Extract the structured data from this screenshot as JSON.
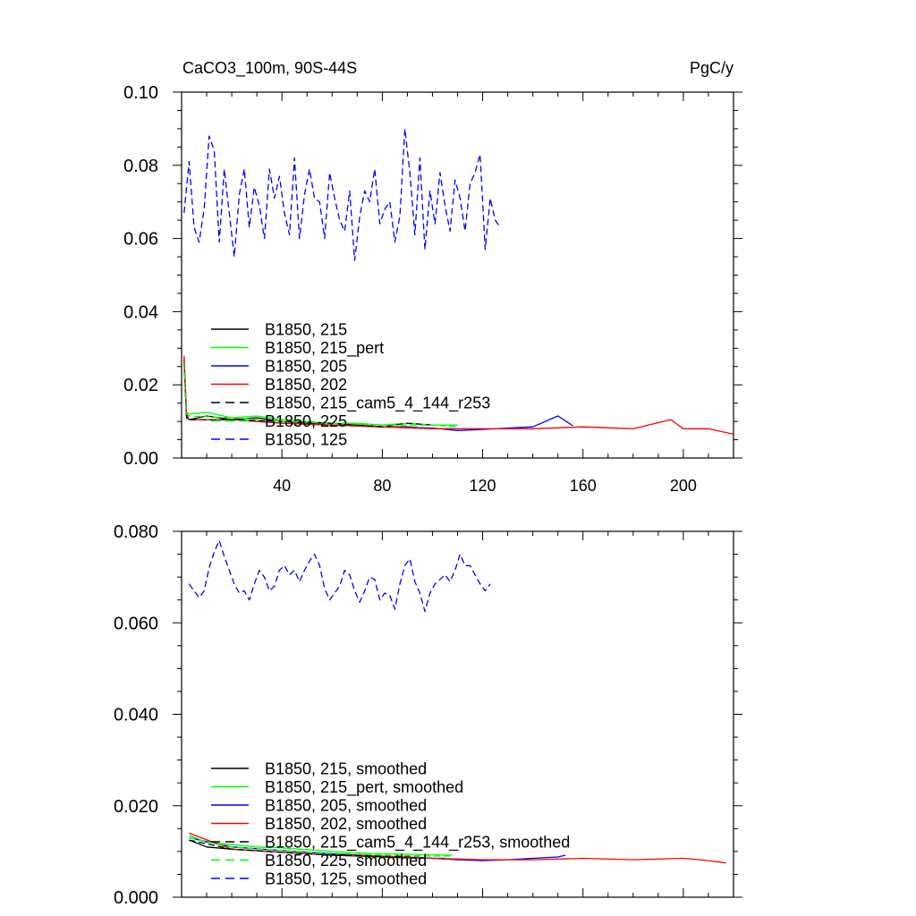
{
  "chart_data": [
    {
      "type": "line",
      "title": "CaCO3_100m, 90S-44S",
      "units": "PgC/y",
      "xlim": [
        0,
        220
      ],
      "ylim": [
        0,
        0.1
      ],
      "xticks": [
        40,
        80,
        120,
        160,
        200
      ],
      "yticks": [
        0,
        0.02,
        0.04,
        0.06,
        0.08,
        0.1
      ],
      "ytick_labels": [
        "0.00",
        "0.02",
        "0.04",
        "0.06",
        "0.08",
        "0.10"
      ],
      "legend_position": "lower-left",
      "series": [
        {
          "name": "B1850, 215",
          "color": "#000000",
          "dash": "solid",
          "x": [
            1,
            2,
            3,
            10,
            20,
            30,
            40,
            50,
            60,
            70,
            80,
            90,
            100,
            108
          ],
          "y": [
            0.027,
            0.011,
            0.0105,
            0.0115,
            0.0105,
            0.011,
            0.01,
            0.0095,
            0.0095,
            0.009,
            0.0085,
            0.0085,
            0.008,
            0.008
          ]
        },
        {
          "name": "B1850, 215_pert",
          "color": "#00ff00",
          "dash": "solid",
          "x": [
            1,
            2,
            3,
            10,
            20,
            30,
            40,
            50,
            60,
            70,
            80,
            90,
            100,
            110
          ],
          "y": [
            0.026,
            0.0125,
            0.012,
            0.0125,
            0.011,
            0.0115,
            0.0105,
            0.01,
            0.0095,
            0.0095,
            0.009,
            0.0095,
            0.009,
            0.009
          ]
        },
        {
          "name": "B1850, 205",
          "color": "#0000ff",
          "dash": "solid",
          "x": [
            1,
            2,
            3,
            20,
            40,
            60,
            80,
            100,
            110,
            120,
            130,
            140,
            150,
            156
          ],
          "y": [
            0.026,
            0.0115,
            0.0105,
            0.0105,
            0.0095,
            0.009,
            0.0085,
            0.0082,
            0.0075,
            0.0078,
            0.0082,
            0.0085,
            0.0115,
            0.0088
          ]
        },
        {
          "name": "B1850, 202",
          "color": "#ff0000",
          "dash": "solid",
          "x": [
            1,
            2,
            3,
            20,
            40,
            60,
            80,
            100,
            120,
            140,
            160,
            180,
            195,
            200,
            210,
            220
          ],
          "y": [
            0.028,
            0.012,
            0.0105,
            0.0105,
            0.0095,
            0.009,
            0.0085,
            0.008,
            0.008,
            0.008,
            0.0085,
            0.008,
            0.0105,
            0.008,
            0.008,
            0.0065
          ]
        },
        {
          "name": "B1850, 215_cam5_4_144_r253",
          "color": "#000000",
          "dash": "dashed",
          "x": [
            1,
            2,
            3,
            20,
            40,
            60,
            80,
            90,
            100
          ],
          "y": [
            0.026,
            0.011,
            0.0105,
            0.0105,
            0.01,
            0.0095,
            0.0085,
            0.0095,
            0.009
          ]
        },
        {
          "name": "B1850, 225",
          "color": "#00ff00",
          "dash": "dashed",
          "x": [
            1,
            2,
            3,
            20,
            40,
            60,
            80,
            100,
            110
          ],
          "y": [
            0.026,
            0.012,
            0.0115,
            0.011,
            0.01,
            0.0095,
            0.009,
            0.009,
            0.0085
          ]
        },
        {
          "name": "B1850, 125",
          "color": "#0000ff",
          "dash": "dashed",
          "x": [
            1,
            3,
            5,
            7,
            9,
            11,
            13,
            15,
            17,
            19,
            21,
            23,
            25,
            27,
            29,
            31,
            33,
            35,
            37,
            39,
            41,
            43,
            45,
            47,
            49,
            51,
            53,
            55,
            57,
            59,
            61,
            63,
            65,
            67,
            69,
            71,
            73,
            75,
            77,
            79,
            81,
            83,
            85,
            87,
            89,
            91,
            93,
            95,
            97,
            99,
            101,
            103,
            105,
            107,
            109,
            111,
            113,
            115,
            117,
            119,
            121,
            123,
            125,
            127
          ],
          "y": [
            0.067,
            0.081,
            0.063,
            0.059,
            0.068,
            0.088,
            0.084,
            0.059,
            0.079,
            0.067,
            0.055,
            0.072,
            0.079,
            0.063,
            0.074,
            0.069,
            0.06,
            0.079,
            0.071,
            0.077,
            0.067,
            0.061,
            0.082,
            0.06,
            0.072,
            0.079,
            0.071,
            0.07,
            0.06,
            0.078,
            0.071,
            0.065,
            0.062,
            0.073,
            0.054,
            0.066,
            0.073,
            0.07,
            0.079,
            0.064,
            0.068,
            0.07,
            0.059,
            0.066,
            0.09,
            0.078,
            0.061,
            0.082,
            0.057,
            0.073,
            0.064,
            0.078,
            0.069,
            0.062,
            0.076,
            0.071,
            0.062,
            0.075,
            0.078,
            0.083,
            0.057,
            0.071,
            0.065,
            0.063
          ]
        }
      ]
    },
    {
      "type": "line",
      "xlim": [
        0,
        220
      ],
      "ylim": [
        0,
        0.08
      ],
      "xticks": [
        40,
        80,
        120,
        160,
        200
      ],
      "yticks": [
        0,
        0.02,
        0.04,
        0.06,
        0.08
      ],
      "ytick_labels": [
        "0.000",
        "0.020",
        "0.040",
        "0.060",
        "0.080"
      ],
      "legend_position": "lower-left",
      "series": [
        {
          "name": "B1850, 215, smoothed",
          "color": "#000000",
          "dash": "solid",
          "x": [
            3,
            10,
            20,
            30,
            40,
            50,
            60,
            70,
            80,
            90,
            100,
            105
          ],
          "y": [
            0.0125,
            0.011,
            0.0105,
            0.0102,
            0.0098,
            0.0095,
            0.0092,
            0.009,
            0.0088,
            0.0086,
            0.0085,
            0.0085
          ]
        },
        {
          "name": "B1850, 215_pert, smoothed",
          "color": "#00ff00",
          "dash": "solid",
          "x": [
            3,
            10,
            20,
            30,
            40,
            50,
            60,
            70,
            80,
            90,
            100,
            108
          ],
          "y": [
            0.0135,
            0.012,
            0.0115,
            0.011,
            0.0108,
            0.0104,
            0.01,
            0.0097,
            0.0095,
            0.0094,
            0.0093,
            0.0092
          ]
        },
        {
          "name": "B1850, 205, smoothed",
          "color": "#0000ff",
          "dash": "solid",
          "x": [
            3,
            20,
            40,
            60,
            80,
            100,
            110,
            120,
            130,
            140,
            150,
            153
          ],
          "y": [
            0.013,
            0.011,
            0.0102,
            0.0095,
            0.009,
            0.0085,
            0.0082,
            0.008,
            0.0082,
            0.0085,
            0.0088,
            0.0092
          ]
        },
        {
          "name": "B1850, 202, smoothed",
          "color": "#ff0000",
          "dash": "solid",
          "x": [
            3,
            20,
            40,
            60,
            80,
            100,
            120,
            140,
            160,
            180,
            200,
            210,
            217
          ],
          "y": [
            0.014,
            0.0105,
            0.0098,
            0.0092,
            0.009,
            0.0085,
            0.0082,
            0.0082,
            0.0085,
            0.0082,
            0.0085,
            0.008,
            0.0075
          ]
        },
        {
          "name": "B1850, 215_cam5_4_144_r253, smoothed",
          "color": "#000000",
          "dash": "dashed",
          "x": [
            3,
            20,
            40,
            60,
            80,
            95
          ],
          "y": [
            0.0125,
            0.0105,
            0.0098,
            0.0092,
            0.009,
            0.009
          ]
        },
        {
          "name": "B1850, 225, smoothed",
          "color": "#00ff00",
          "dash": "dashed",
          "x": [
            3,
            20,
            40,
            60,
            80,
            100,
            108
          ],
          "y": [
            0.013,
            0.011,
            0.0102,
            0.0096,
            0.0092,
            0.009,
            0.009
          ]
        },
        {
          "name": "B1850, 125, smoothed",
          "color": "#0000ff",
          "dash": "dashed",
          "x": [
            3,
            7,
            9,
            11,
            13,
            15,
            17,
            19,
            21,
            23,
            25,
            27,
            29,
            31,
            33,
            35,
            37,
            39,
            41,
            43,
            45,
            47,
            49,
            51,
            53,
            55,
            57,
            59,
            61,
            63,
            65,
            67,
            69,
            71,
            73,
            75,
            77,
            79,
            81,
            83,
            85,
            87,
            89,
            91,
            93,
            95,
            97,
            99,
            101,
            103,
            105,
            107,
            109,
            111,
            113,
            115,
            117,
            119,
            121,
            123
          ],
          "y": [
            0.0685,
            0.0655,
            0.067,
            0.072,
            0.0755,
            0.078,
            0.0745,
            0.0715,
            0.0685,
            0.0665,
            0.067,
            0.065,
            0.0685,
            0.0715,
            0.07,
            0.067,
            0.068,
            0.0715,
            0.0725,
            0.0705,
            0.0715,
            0.069,
            0.0715,
            0.0735,
            0.075,
            0.0725,
            0.0675,
            0.065,
            0.0665,
            0.068,
            0.0715,
            0.0705,
            0.067,
            0.0645,
            0.067,
            0.07,
            0.0695,
            0.065,
            0.0665,
            0.066,
            0.063,
            0.0685,
            0.0725,
            0.074,
            0.069,
            0.0665,
            0.0625,
            0.0665,
            0.0685,
            0.0695,
            0.0705,
            0.069,
            0.0715,
            0.075,
            0.0725,
            0.0725,
            0.0705,
            0.0685,
            0.067,
            0.0685
          ]
        }
      ]
    }
  ]
}
